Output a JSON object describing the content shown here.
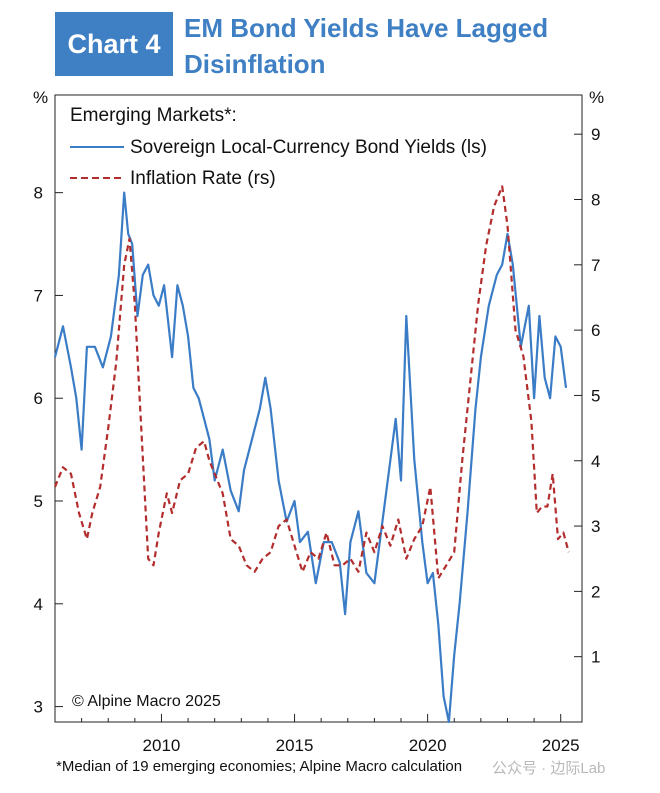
{
  "header": {
    "badge": "Chart 4",
    "title_line1": "EM Bond Yields Have Lagged",
    "title_line2": "Disinflation"
  },
  "footnote": "*Median of 19 emerging economies; Alpine Macro calculation",
  "watermark": "公众号 · 边际Lab",
  "colors": {
    "accent": "#3f7fc4",
    "yields": "#3a7cc6",
    "inflation": "#b32d2d"
  },
  "chart_data": {
    "type": "line",
    "title": "",
    "legend_title": "Emerging Markets*:",
    "legend_placement": "top-left",
    "copyright": "© Alpine Macro 2025",
    "y_left_unit": "%",
    "y_right_unit": "%",
    "x_ticks": [
      2010,
      2015,
      2020,
      2025
    ],
    "xlim": [
      2006.0,
      2025.8
    ],
    "y_left_ticks": [
      3,
      4,
      5,
      6,
      7,
      8
    ],
    "y_left_lim": [
      2.85,
      8.95
    ],
    "y_right_ticks": [
      1,
      2,
      3,
      4,
      5,
      6,
      7,
      8,
      9
    ],
    "y_right_lim": [
      0.0,
      9.6
    ],
    "grid": false,
    "series": [
      {
        "name": "Sovereign Local-Currency Bond Yields (ls)",
        "axis": "left",
        "style": "solid",
        "x": [
          2006.0,
          2006.3,
          2006.6,
          2006.8,
          2007.0,
          2007.2,
          2007.5,
          2007.8,
          2008.1,
          2008.4,
          2008.6,
          2008.75,
          2008.9,
          2009.1,
          2009.3,
          2009.5,
          2009.7,
          2009.9,
          2010.1,
          2010.4,
          2010.6,
          2010.8,
          2011.0,
          2011.2,
          2011.4,
          2011.6,
          2011.8,
          2012.0,
          2012.3,
          2012.6,
          2012.9,
          2013.1,
          2013.4,
          2013.7,
          2013.9,
          2014.1,
          2014.4,
          2014.7,
          2015.0,
          2015.2,
          2015.5,
          2015.8,
          2016.1,
          2016.4,
          2016.7,
          2016.9,
          2017.1,
          2017.4,
          2017.7,
          2018.0,
          2018.3,
          2018.6,
          2018.8,
          2019.0,
          2019.2,
          2019.5,
          2019.8,
          2020.0,
          2020.2,
          2020.4,
          2020.6,
          2020.8,
          2021.0,
          2021.2,
          2021.5,
          2021.8,
          2022.0,
          2022.3,
          2022.6,
          2022.8,
          2023.0,
          2023.2,
          2023.5,
          2023.8,
          2024.0,
          2024.2,
          2024.4,
          2024.6,
          2024.8,
          2025.0,
          2025.2
        ],
        "values": [
          6.4,
          6.7,
          6.3,
          6.0,
          5.5,
          6.5,
          6.5,
          6.3,
          6.6,
          7.2,
          8.0,
          7.6,
          7.5,
          6.8,
          7.2,
          7.3,
          7.0,
          6.9,
          7.1,
          6.4,
          7.1,
          6.9,
          6.6,
          6.1,
          6.0,
          5.8,
          5.6,
          5.2,
          5.5,
          5.1,
          4.9,
          5.3,
          5.6,
          5.9,
          6.2,
          5.9,
          5.2,
          4.8,
          5.0,
          4.6,
          4.7,
          4.2,
          4.6,
          4.6,
          4.4,
          3.9,
          4.6,
          4.9,
          4.3,
          4.2,
          4.8,
          5.4,
          5.8,
          5.2,
          6.8,
          5.4,
          4.6,
          4.2,
          4.3,
          3.8,
          3.1,
          2.85,
          3.5,
          4.0,
          4.9,
          5.9,
          6.4,
          6.9,
          7.2,
          7.3,
          7.6,
          7.3,
          6.5,
          6.9,
          6.0,
          6.8,
          6.2,
          6.0,
          6.6,
          6.5,
          6.1
        ]
      },
      {
        "name": "Inflation Rate (rs)",
        "axis": "right",
        "style": "dashed",
        "x": [
          2006.0,
          2006.3,
          2006.6,
          2006.9,
          2007.2,
          2007.4,
          2007.7,
          2008.0,
          2008.3,
          2008.6,
          2008.8,
          2009.0,
          2009.2,
          2009.5,
          2009.7,
          2009.9,
          2010.2,
          2010.4,
          2010.7,
          2011.0,
          2011.3,
          2011.6,
          2011.8,
          2012.0,
          2012.3,
          2012.6,
          2012.9,
          2013.2,
          2013.5,
          2013.8,
          2014.1,
          2014.4,
          2014.7,
          2015.0,
          2015.3,
          2015.6,
          2015.9,
          2016.2,
          2016.5,
          2016.8,
          2017.1,
          2017.4,
          2017.7,
          2018.0,
          2018.3,
          2018.6,
          2018.9,
          2019.2,
          2019.5,
          2019.8,
          2020.1,
          2020.4,
          2020.7,
          2021.0,
          2021.3,
          2021.6,
          2021.9,
          2022.2,
          2022.5,
          2022.8,
          2023.0,
          2023.3,
          2023.6,
          2023.9,
          2024.1,
          2024.3,
          2024.5,
          2024.7,
          2024.9,
          2025.1,
          2025.3
        ],
        "values": [
          3.6,
          3.9,
          3.8,
          3.2,
          2.8,
          3.2,
          3.6,
          4.5,
          5.5,
          7.0,
          7.4,
          6.4,
          4.8,
          2.5,
          2.4,
          2.9,
          3.5,
          3.2,
          3.7,
          3.8,
          4.2,
          4.3,
          4.0,
          3.8,
          3.5,
          2.8,
          2.7,
          2.4,
          2.3,
          2.5,
          2.6,
          3.0,
          3.1,
          2.7,
          2.3,
          2.6,
          2.5,
          2.9,
          2.4,
          2.4,
          2.5,
          2.3,
          2.9,
          2.6,
          3.0,
          2.7,
          3.1,
          2.5,
          2.8,
          3.0,
          3.6,
          2.2,
          2.4,
          2.6,
          4.0,
          5.2,
          6.4,
          7.3,
          7.9,
          8.2,
          7.6,
          6.0,
          5.6,
          4.6,
          3.2,
          3.3,
          3.3,
          3.8,
          2.8,
          2.9,
          2.6
        ]
      }
    ]
  }
}
